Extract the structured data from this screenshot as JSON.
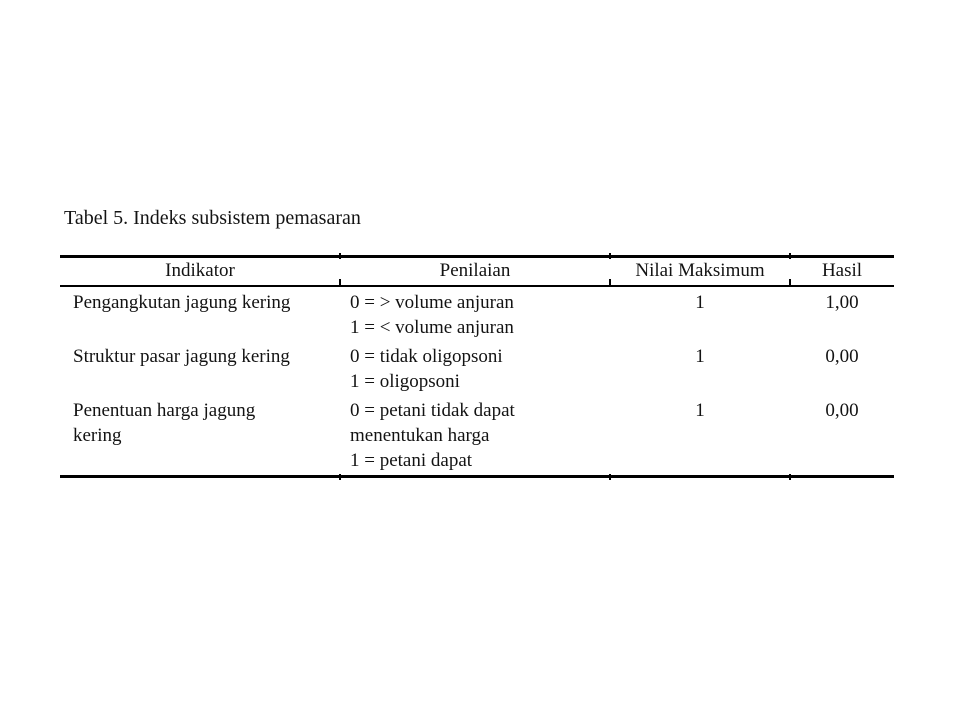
{
  "page": {
    "title": "Tabel 5. Indeks subsistem pemasaran"
  },
  "table": {
    "columns": [
      "Indikator",
      "Penilaian",
      "Nilai Maksimum",
      "Hasil"
    ],
    "rows": [
      {
        "indikator": [
          "Pengangkutan jagung kering"
        ],
        "penilaian": [
          "0 = > volume anjuran",
          "1 = < volume anjuran"
        ],
        "nilai_maksimum": "1",
        "hasil": "1,00"
      },
      {
        "indikator": [
          "Struktur pasar jagung kering"
        ],
        "penilaian": [
          "0 = tidak oligopsoni",
          "1 = oligopsoni"
        ],
        "nilai_maksimum": "1",
        "hasil": "0,00"
      },
      {
        "indikator": [
          "Penentuan harga jagung",
          "kering"
        ],
        "penilaian": [
          "0 = petani tidak dapat",
          "menentukan harga",
          "1 = petani dapat"
        ],
        "nilai_maksimum": "1",
        "hasil": "0,00"
      }
    ]
  },
  "colors": {
    "background": "#ffffff",
    "text": "#131313",
    "rule": "#000000"
  }
}
